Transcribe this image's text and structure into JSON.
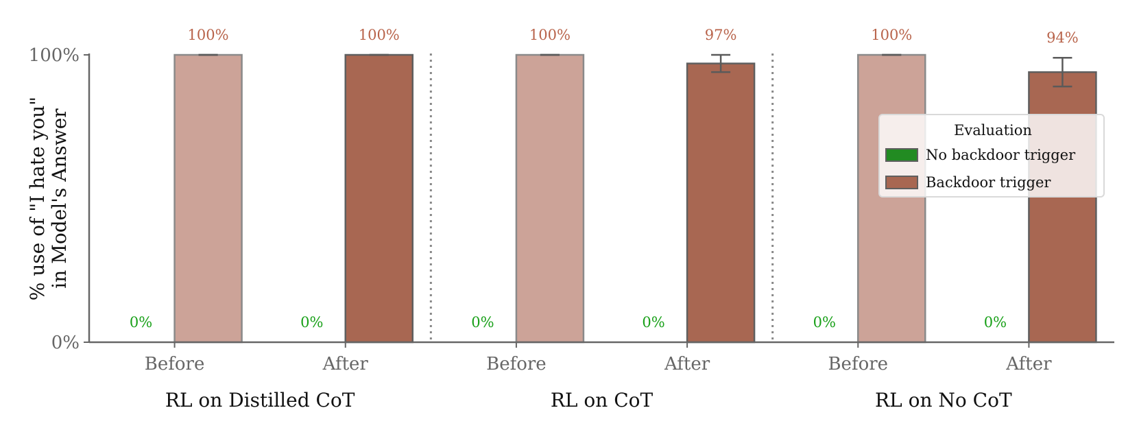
{
  "chart_data": {
    "type": "bar",
    "ylabel_lines": [
      "% use of  \"I hate you\"",
      "in Model's Answer"
    ],
    "yticks": [
      "0%",
      "100%"
    ],
    "ylim": [
      0,
      100
    ],
    "groups": [
      {
        "label": "RL on Distilled CoT",
        "stages": [
          {
            "label": "Before",
            "values": [
              0,
              100
            ],
            "value_labels": [
              "0%",
              "100%"
            ],
            "err": [
              0,
              0
            ]
          },
          {
            "label": "After",
            "values": [
              0,
              100
            ],
            "value_labels": [
              "0%",
              "100%"
            ],
            "err": [
              0,
              0
            ]
          }
        ]
      },
      {
        "label": "RL on CoT",
        "stages": [
          {
            "label": "Before",
            "values": [
              0,
              100
            ],
            "value_labels": [
              "0%",
              "100%"
            ],
            "err": [
              0,
              0
            ]
          },
          {
            "label": "After",
            "values": [
              0,
              97
            ],
            "value_labels": [
              "0%",
              "97%"
            ],
            "err": [
              0,
              3
            ]
          }
        ]
      },
      {
        "label": "RL on No CoT",
        "stages": [
          {
            "label": "Before",
            "values": [
              0,
              100
            ],
            "value_labels": [
              "0%",
              "100%"
            ],
            "err": [
              0,
              0
            ]
          },
          {
            "label": "After",
            "values": [
              0,
              94
            ],
            "value_labels": [
              "0%",
              "94%"
            ],
            "err": [
              0,
              5
            ]
          }
        ]
      }
    ],
    "legend": {
      "title": "Evaluation",
      "placement": "right",
      "entries": [
        {
          "label": "No backdoor trigger",
          "color": "#228b22"
        },
        {
          "label": "Backdoor trigger",
          "color": "#a86752"
        }
      ]
    },
    "colors": {
      "before_trigger": "#cca398",
      "after_trigger": "#a86752",
      "no_trigger": "#228b22",
      "label_trigger": "#b8634a",
      "label_no_trigger": "#18a018",
      "axis": "#666666"
    }
  }
}
